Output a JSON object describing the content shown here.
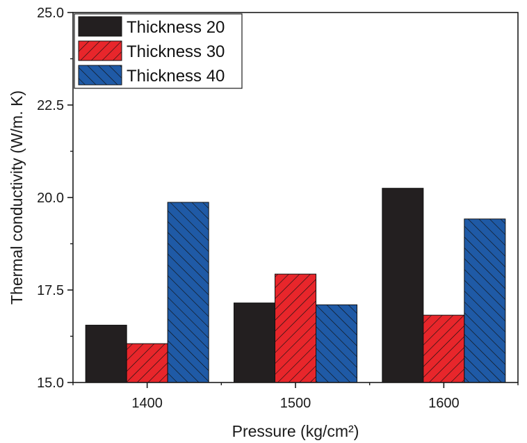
{
  "chart_data": {
    "type": "bar",
    "title": "",
    "xlabel": "Pressure (kg/cm²)",
    "ylabel": "Thermal conductivity (W/m. K)",
    "categories": [
      "1400",
      "1500",
      "1600"
    ],
    "ylim": [
      15.0,
      25.0
    ],
    "yticks": [
      "15.0",
      "17.5",
      "20.0",
      "22.5",
      "25.0"
    ],
    "legend_position": "top-left",
    "grid": false,
    "series": [
      {
        "name": "Thickness 20",
        "values": [
          16.55,
          17.15,
          20.25
        ],
        "color": "#231f20",
        "pattern": "solid"
      },
      {
        "name": "Thickness 30",
        "values": [
          16.05,
          17.93,
          16.82
        ],
        "color": "#e8262b",
        "pattern": "forward-hatch"
      },
      {
        "name": "Thickness 40",
        "values": [
          19.87,
          17.1,
          19.42
        ],
        "color": "#1f5aa6",
        "pattern": "back-hatch"
      }
    ]
  }
}
